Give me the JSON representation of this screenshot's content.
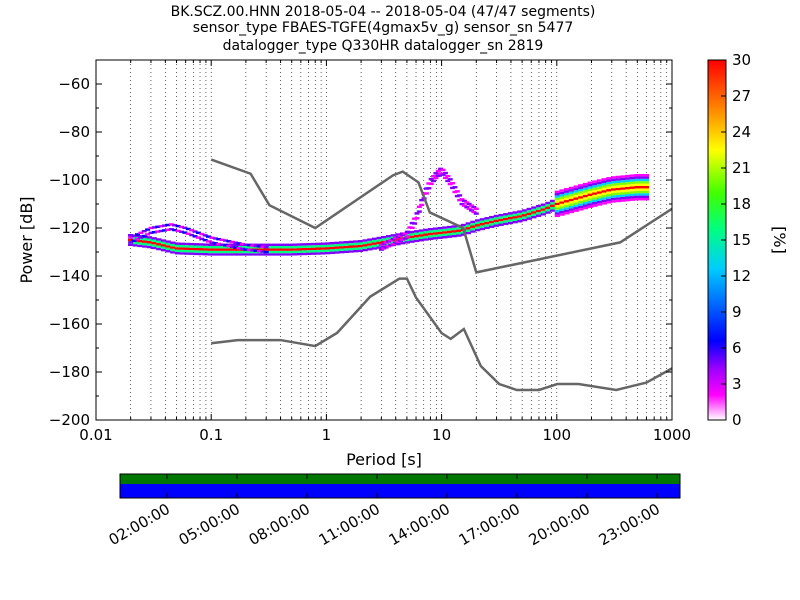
{
  "chart_data": [
    {
      "type": "heatmap",
      "title_lines": [
        "BK.SCZ.00.HNN   2018-05-04 -- 2018-05-04  (47/47 segments)",
        "sensor_type FBAES-TGFE(4gmax5v_g) sensor_sn 5477",
        "datalogger_type Q330HR datalogger_sn 2819"
      ],
      "xlabel": "Period [s]",
      "ylabel": "Power [dB]",
      "xscale": "log",
      "xlim": [
        0.01,
        1000
      ],
      "ylim": [
        -200,
        -50
      ],
      "x_tick_labels": [
        "0.01",
        "0.1",
        "1",
        "10",
        "100",
        "1000"
      ],
      "y_tick_labels": [
        "−200",
        "−180",
        "−160",
        "−140",
        "−120",
        "−100",
        "−80",
        "−60"
      ],
      "grid": "dotted vertical lines at minor period ticks",
      "colorbar": {
        "label": "[%]",
        "range": [
          0,
          30
        ],
        "tick_labels": [
          "0",
          "3",
          "6",
          "9",
          "12",
          "15",
          "18",
          "21",
          "24",
          "27",
          "30"
        ],
        "colormap": [
          "#ffffff",
          "#ff00ff",
          "#8000ff",
          "#0000ff",
          "#00ccff",
          "#00ff80",
          "#80ff00",
          "#ffff00",
          "#ff8000",
          "#ff0000"
        ]
      },
      "noise_model_high": {
        "name": "NHNM",
        "color": "#666666",
        "x": [
          0.1,
          0.22,
          0.32,
          0.8,
          3.8,
          4.6,
          6.3,
          7.9,
          15.4,
          20,
          354.8,
          1000
        ],
        "y": [
          -91.5,
          -97.4,
          -110.5,
          -120,
          -98,
          -96.5,
          -101,
          -113.5,
          -120,
          -138.5,
          -126,
          -112
        ]
      },
      "noise_model_low": {
        "name": "NLNM",
        "color": "#666666",
        "x": [
          0.1,
          0.17,
          0.4,
          0.8,
          1.24,
          2.4,
          4.3,
          5,
          6,
          10,
          12,
          15.6,
          21.9,
          31.6,
          45,
          70,
          101,
          154,
          328,
          600,
          1000
        ],
        "y": [
          -168,
          -166.7,
          -166.7,
          -169.2,
          -163.7,
          -148.6,
          -141.1,
          -141.1,
          -149,
          -163.8,
          -166.2,
          -162.1,
          -177.5,
          -185,
          -187.5,
          -187.5,
          -185,
          -185,
          -187.5,
          -184.4,
          -178.5
        ]
      },
      "psd_mode": {
        "x": [
          0.02,
          0.03,
          0.05,
          0.1,
          0.2,
          0.5,
          1,
          2,
          3,
          5,
          8,
          10,
          15,
          20,
          30,
          50,
          80,
          100,
          200,
          300,
          500,
          600
        ],
        "y": [
          -125,
          -126,
          -128.5,
          -129,
          -129,
          -129,
          -128.5,
          -127.5,
          -126,
          -124,
          -122.5,
          -122,
          -121,
          -119,
          -117,
          -115,
          -112,
          -110,
          -106,
          -104,
          -103,
          -103
        ]
      },
      "psd_spread_db": 2,
      "secondary_branch": {
        "x": [
          3,
          5,
          6,
          7,
          8,
          9,
          10,
          12,
          15,
          20
        ],
        "y": [
          -127,
          -122,
          -115,
          -106,
          -100,
          -97,
          -95,
          -100,
          -108,
          -112
        ]
      },
      "early_branch": {
        "x": [
          0.02,
          0.03,
          0.045,
          0.06,
          0.1,
          0.2,
          0.3
        ],
        "y": [
          -124,
          -120,
          -118.5,
          -120,
          -124,
          -127,
          -128
        ]
      }
    },
    {
      "type": "timeline",
      "bands": [
        {
          "color": "#007700"
        },
        {
          "color": "#0000ff"
        }
      ],
      "tick_labels": [
        "02:00:00",
        "05:00:00",
        "08:00:00",
        "11:00:00",
        "14:00:00",
        "17:00:00",
        "20:00:00",
        "23:00:00"
      ]
    }
  ]
}
